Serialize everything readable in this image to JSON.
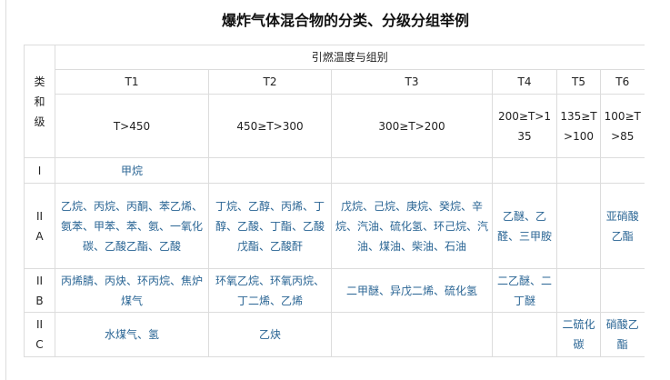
{
  "title": "爆炸气体混合物的分类、分级分组举例",
  "table": {
    "corner_label": "类\n和\n级",
    "group_header": "引燃温度与组别",
    "groups": [
      "T1",
      "T2",
      "T3",
      "T4",
      "T5",
      "T6"
    ],
    "temperatures": [
      "T>450",
      "450≥T>300",
      "300≥T>200",
      "200≥T>135",
      "135≥T>100",
      "100≥T>85"
    ],
    "rows": [
      {
        "class": "I",
        "cells": [
          "甲烷",
          "",
          "",
          "",
          "",
          ""
        ]
      },
      {
        "class": "II A",
        "cells": [
          "乙烷、丙烷、丙酮、苯乙烯、氨苯、甲苯、苯、氨、一氧化碳、乙酸乙酯、乙酸",
          "丁烷、乙醇、丙烯、丁醇、乙酸、丁酯、乙酸戊酯、乙酸酐",
          "戊烷、己烷、庚烷、癸烷、辛烷、汽油、硫化氢、环己烷、汽油、煤油、柴油、石油",
          "乙醚、乙醛、三甲胺",
          "",
          "亚硝酸乙酯"
        ]
      },
      {
        "class": "II B",
        "cells": [
          "丙烯腈、丙炔、环丙烷、焦炉煤气",
          "环氧乙烷、环氧丙烷、丁二烯、乙烯",
          "二甲醚、异戊二烯、硫化氢",
          "二乙醚、二丁醚",
          "",
          ""
        ]
      },
      {
        "class": "II C",
        "cells": [
          "水煤气、氢",
          "乙炔",
          "",
          "",
          "二硫化碳",
          "硝酸乙酯"
        ]
      }
    ]
  },
  "colors": {
    "link_text": "#2a6594",
    "border": "#dcdcdc"
  }
}
